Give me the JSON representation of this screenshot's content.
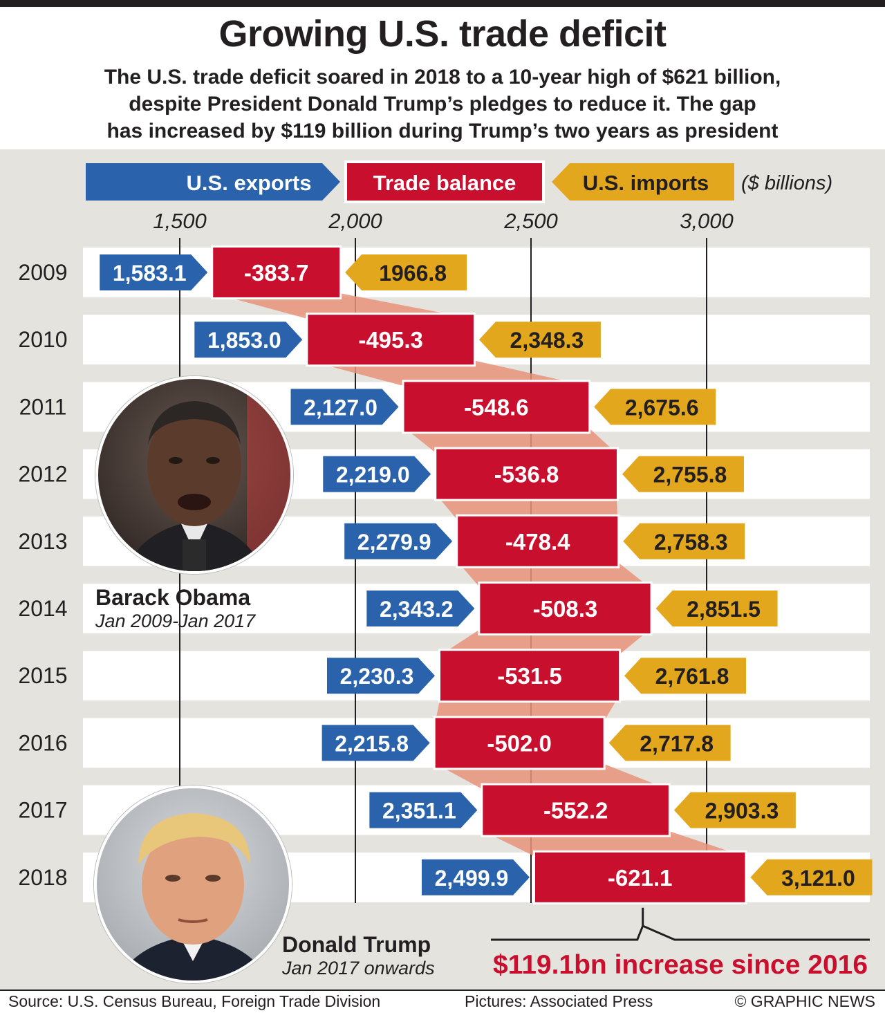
{
  "header": {
    "title": "Growing U.S. trade deficit",
    "subtitle_lines": [
      "The U.S. trade deficit soared in 2018 to a 10-year high of $621 billion,",
      "despite President Donald Trump’s pledges to reduce it. The gap",
      "has increased by $119 billion during Trump’s two years as president"
    ]
  },
  "legend": {
    "exports": "U.S. exports",
    "balance": "Trade balance",
    "imports": "U.S. imports",
    "units": "($ billions)"
  },
  "people": {
    "obama": {
      "name": "Barack Obama",
      "term": "Jan 2009-Jan 2017"
    },
    "trump": {
      "name": "Donald Trump",
      "term": "Jan 2017 onwards"
    }
  },
  "annotation": {
    "text": "$119.1bn increase since 2016"
  },
  "footer": {
    "source": "Source: U.S. Census Bureau, Foreign Trade Division",
    "pictures": "Pictures: Associated Press",
    "copyright": "© GRAPHIC NEWS"
  },
  "colors": {
    "exports": "#2a63ab",
    "balance": "#c8102e",
    "imports": "#e3a71d",
    "connector": "#e9937a",
    "panel": "#e5e3de",
    "annotation": "#c8102e"
  },
  "chart_data": {
    "type": "table",
    "title": "Growing U.S. trade deficit",
    "units": "$ billions",
    "xlim": [
      1250,
      3400
    ],
    "xticks": [
      1500,
      2000,
      2500,
      3000
    ],
    "xtick_labels": [
      "1,500",
      "2,000",
      "2,500",
      "3,000"
    ],
    "rows": [
      {
        "year": "2009",
        "exports": 1583.1,
        "exports_label": "1,583.1",
        "balance_label": "-383.7",
        "imports": 1966.8,
        "imports_label": "1966.8"
      },
      {
        "year": "2010",
        "exports": 1853.0,
        "exports_label": "1,853.0",
        "balance_label": "-495.3",
        "imports": 2348.3,
        "imports_label": "2,348.3"
      },
      {
        "year": "2011",
        "exports": 2127.0,
        "exports_label": "2,127.0",
        "balance_label": "-548.6",
        "imports": 2675.6,
        "imports_label": "2,675.6"
      },
      {
        "year": "2012",
        "exports": 2219.0,
        "exports_label": "2,219.0",
        "balance_label": "-536.8",
        "imports": 2755.8,
        "imports_label": "2,755.8"
      },
      {
        "year": "2013",
        "exports": 2279.9,
        "exports_label": "2,279.9",
        "balance_label": "-478.4",
        "imports": 2758.3,
        "imports_label": "2,758.3"
      },
      {
        "year": "2014",
        "exports": 2343.2,
        "exports_label": "2,343.2",
        "balance_label": "-508.3",
        "imports": 2851.5,
        "imports_label": "2,851.5"
      },
      {
        "year": "2015",
        "exports": 2230.3,
        "exports_label": "2,230.3",
        "balance_label": "-531.5",
        "imports": 2761.8,
        "imports_label": "2,761.8"
      },
      {
        "year": "2016",
        "exports": 2215.8,
        "exports_label": "2,215.8",
        "balance_label": "-502.0",
        "imports": 2717.8,
        "imports_label": "2,717.8"
      },
      {
        "year": "2017",
        "exports": 2351.1,
        "exports_label": "2,351.1",
        "balance_label": "-552.2",
        "imports": 2903.3,
        "imports_label": "2,903.3"
      },
      {
        "year": "2018",
        "exports": 2499.9,
        "exports_label": "2,499.9",
        "balance_label": "-621.1",
        "imports": 3121.0,
        "imports_label": "3,121.0"
      }
    ]
  }
}
